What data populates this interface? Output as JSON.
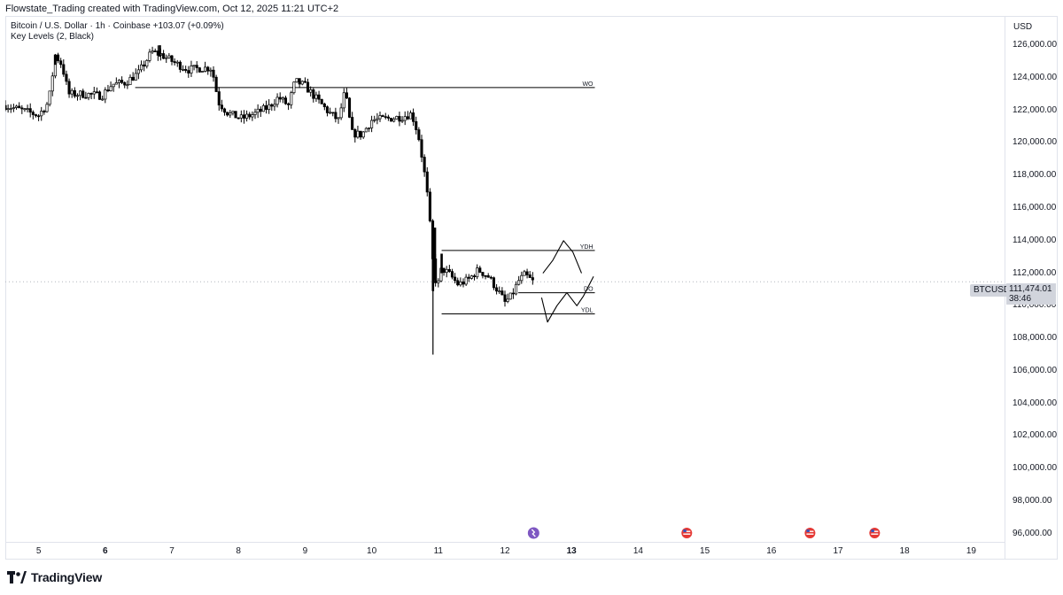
{
  "header": {
    "author_line": "Flowstate_Trading created with TradingView.com, Oct 12, 2025 11:21 UTC+2"
  },
  "legend": {
    "symbol_line": "Bitcoin / U.S. Dollar · 1h · Coinbase",
    "change": "+103.07 (+0.09%)",
    "indicator": "Key Levels (2, Black)"
  },
  "price_axis": {
    "currency": "USD",
    "ticks": [
      "126,000.00",
      "124,000.00",
      "122,000.00",
      "120,000.00",
      "118,000.00",
      "116,000.00",
      "114,000.00",
      "112,000.00",
      "110,000.00",
      "108,000.00",
      "106,000.00",
      "104,000.00",
      "102,000.00",
      "100,000.00",
      "98,000.00",
      "96,000.00"
    ]
  },
  "time_axis": {
    "ticks": [
      "5",
      "6",
      "7",
      "8",
      "9",
      "10",
      "11",
      "12",
      "13",
      "14",
      "15",
      "16",
      "17",
      "18",
      "19"
    ],
    "bold": [
      "6",
      "13"
    ]
  },
  "symbol_tag": "BTCUSD",
  "last_price": {
    "value": "111,474.01",
    "countdown": "38:46"
  },
  "brand": "TradingView",
  "colors": {
    "candle": "#000000",
    "grid": "#e0e3eb",
    "tag_bg": "#d1d4dc",
    "event_red": "#e53935",
    "event_purple": "#7e57c2"
  },
  "chart_data": {
    "type": "candlestick",
    "symbol": "BTCUSD",
    "timeframe": "1h",
    "ylim": [
      95500,
      127800
    ],
    "x_start_day": 4.5,
    "x_end_day": 19.5,
    "key_levels": [
      {
        "label": "WO",
        "value": 123400,
        "from_day": 6.45,
        "to_day": 13.35
      },
      {
        "label": "YDH",
        "value": 113400,
        "from_day": 11.05,
        "to_day": 13.35
      },
      {
        "label": "DO",
        "value": 110800,
        "from_day": 12.2,
        "to_day": 13.35
      },
      {
        "label": "YDL",
        "value": 109500,
        "from_day": 11.05,
        "to_day": 13.35
      }
    ],
    "event_markers": [
      {
        "day": 12.43,
        "kind": "event-purple-icon"
      },
      {
        "day": 14.73,
        "kind": "us-flag-icon"
      },
      {
        "day": 16.58,
        "kind": "us-flag-icon"
      },
      {
        "day": 17.55,
        "kind": "us-flag-icon"
      }
    ],
    "close_path": [
      [
        4.5,
        122300
      ],
      [
        4.75,
        122000
      ],
      [
        5.0,
        121700
      ],
      [
        5.15,
        122500
      ],
      [
        5.25,
        125400
      ],
      [
        5.35,
        124800
      ],
      [
        5.45,
        123000
      ],
      [
        5.7,
        123000
      ],
      [
        5.95,
        122900
      ],
      [
        6.1,
        123600
      ],
      [
        6.3,
        123700
      ],
      [
        6.5,
        124300
      ],
      [
        6.7,
        125600
      ],
      [
        6.85,
        125400
      ],
      [
        7.05,
        124900
      ],
      [
        7.25,
        124500
      ],
      [
        7.45,
        124600
      ],
      [
        7.6,
        124600
      ],
      [
        7.7,
        122500
      ],
      [
        7.85,
        121800
      ],
      [
        8.05,
        121500
      ],
      [
        8.25,
        121800
      ],
      [
        8.45,
        122200
      ],
      [
        8.6,
        122800
      ],
      [
        8.75,
        122300
      ],
      [
        8.85,
        123800
      ],
      [
        9.0,
        123500
      ],
      [
        9.15,
        122800
      ],
      [
        9.35,
        121900
      ],
      [
        9.5,
        121400
      ],
      [
        9.6,
        123200
      ],
      [
        9.7,
        120600
      ],
      [
        9.85,
        120500
      ],
      [
        10.0,
        121400
      ],
      [
        10.25,
        121500
      ],
      [
        10.45,
        121600
      ],
      [
        10.6,
        121800
      ],
      [
        10.7,
        120500
      ],
      [
        10.78,
        118500
      ],
      [
        10.85,
        116300
      ],
      [
        10.92,
        112600
      ],
      [
        10.98,
        111000
      ],
      [
        11.05,
        112300
      ],
      [
        11.15,
        112000
      ],
      [
        11.3,
        111300
      ],
      [
        11.45,
        111600
      ],
      [
        11.6,
        112200
      ],
      [
        11.75,
        111800
      ],
      [
        11.9,
        110900
      ],
      [
        12.0,
        110200
      ],
      [
        12.1,
        110600
      ],
      [
        12.2,
        111500
      ],
      [
        12.3,
        111900
      ],
      [
        12.42,
        111474
      ]
    ],
    "candles": {
      "bodies": [
        [
          5.25,
          124800,
          125400
        ],
        [
          6.82,
          125300,
          126000
        ],
        [
          10.92,
          110900,
          114500
        ],
        [
          10.95,
          111600,
          114800
        ],
        [
          11.05,
          112000,
          113200
        ]
      ],
      "wicks": [
        [
          10.92,
          107000,
          114800
        ]
      ]
    },
    "projections": [
      [
        [
          12.57,
          112000
        ],
        [
          12.72,
          112800
        ],
        [
          12.88,
          114000
        ],
        [
          13.02,
          113300
        ],
        [
          13.15,
          112000
        ]
      ],
      [
        [
          12.55,
          110500
        ],
        [
          12.64,
          109000
        ],
        [
          12.78,
          110000
        ],
        [
          12.93,
          110800
        ],
        [
          13.08,
          110000
        ],
        [
          13.18,
          110600
        ],
        [
          13.33,
          111800
        ]
      ]
    ]
  }
}
